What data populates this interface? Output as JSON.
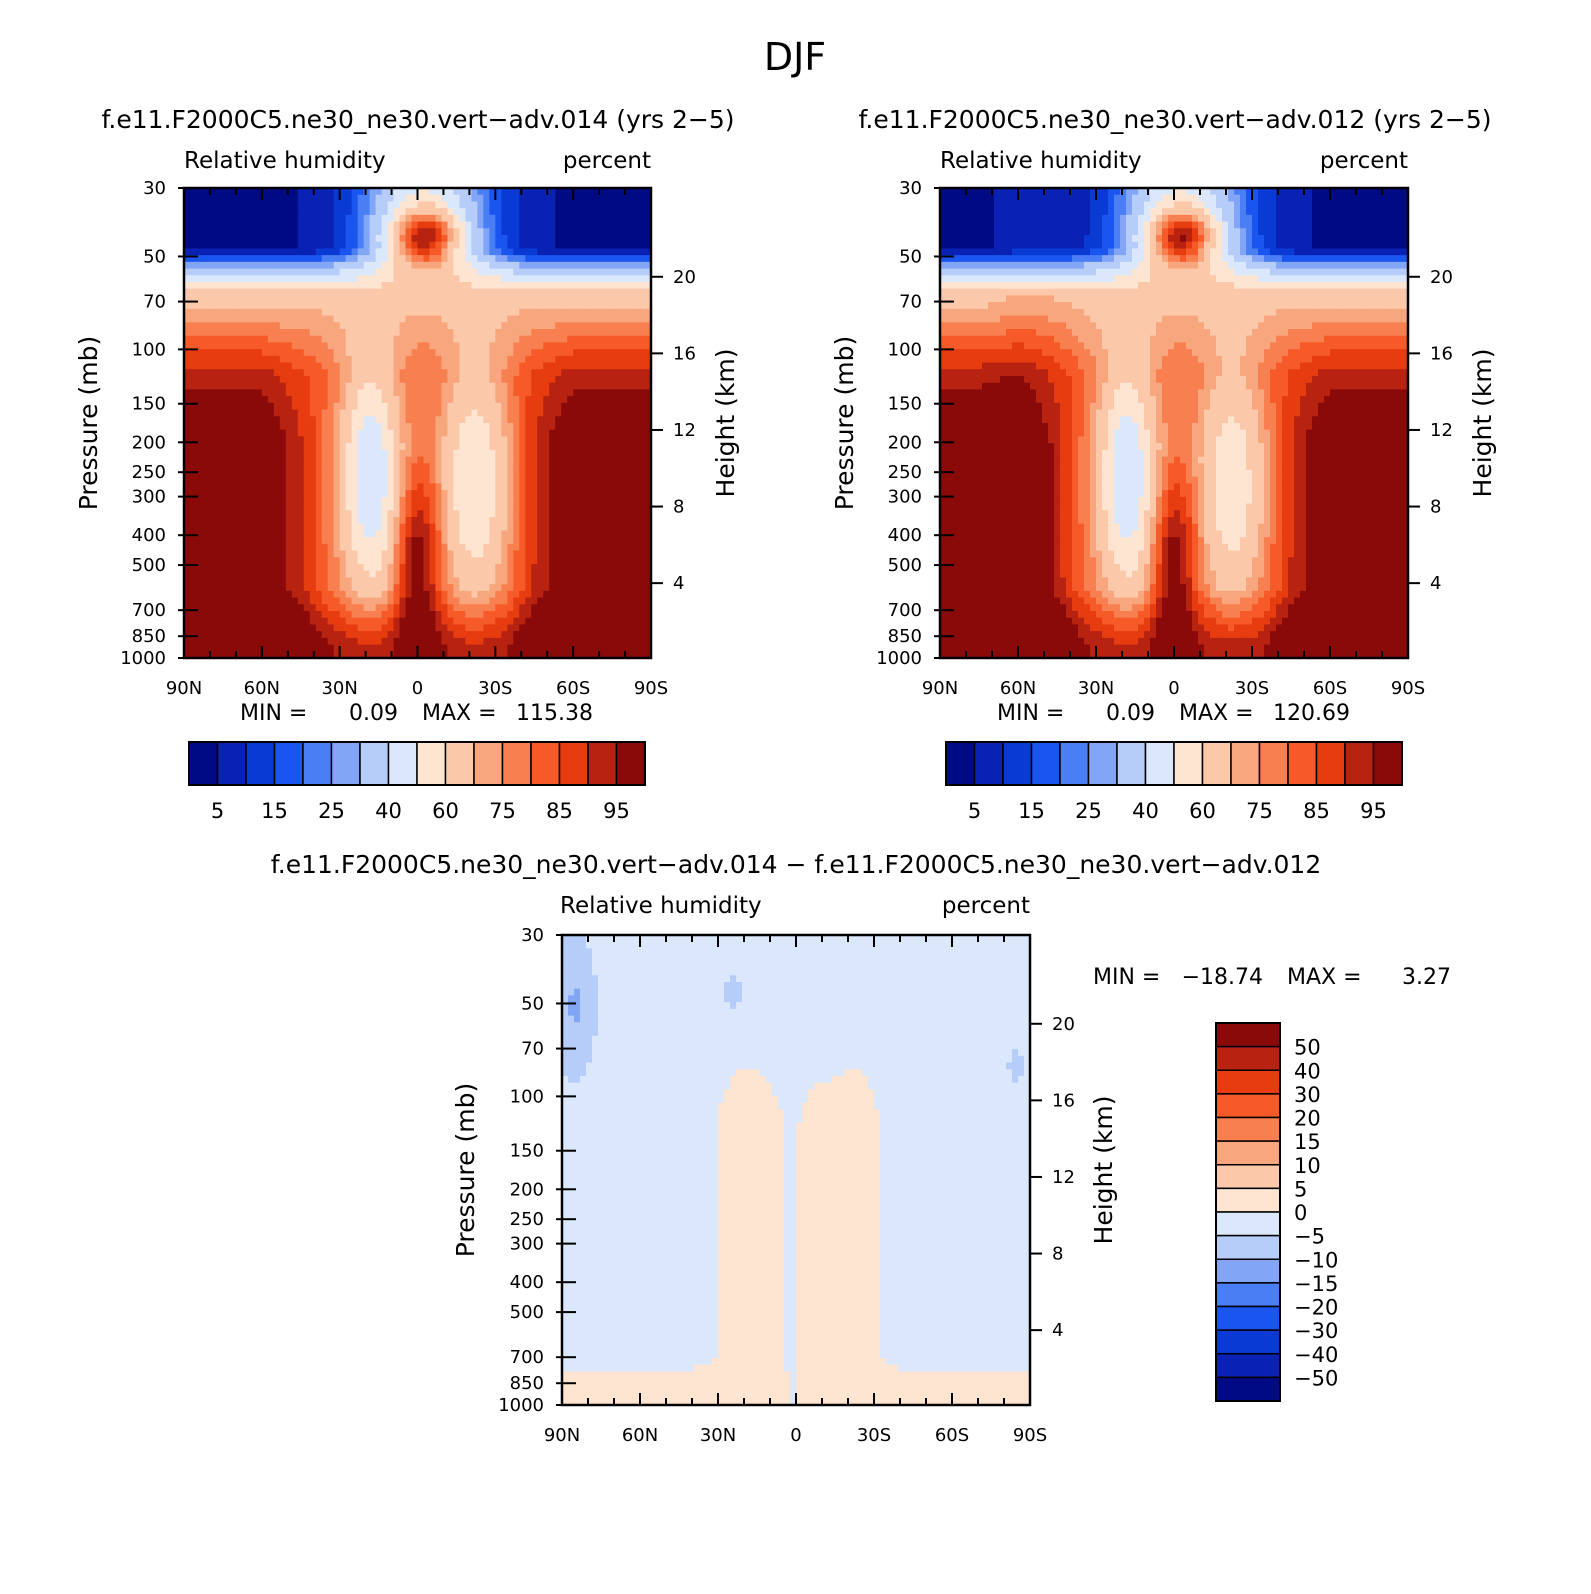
{
  "figure_title": "DJF",
  "colors": {
    "rh_palette": [
      "#000a82",
      "#0a22b4",
      "#0a3ad4",
      "#1a55f0",
      "#4a7ef5",
      "#82a6f5",
      "#b5cdf8",
      "#dbe8fb",
      "#fde5d2",
      "#fbc8aa",
      "#f8a67e",
      "#f88050",
      "#f55a28",
      "#e63c10",
      "#b82210",
      "#8a0a0a"
    ],
    "diff_palette": [
      "#000a82",
      "#0a22b4",
      "#0a3ad4",
      "#1a55f0",
      "#4a7ef5",
      "#82a6f5",
      "#b5cdf8",
      "#dbe8fb",
      "#fde5d2",
      "#fbc8aa",
      "#f8a67e",
      "#f88050",
      "#f55a28",
      "#e63c10",
      "#b82210",
      "#8a0a0a"
    ]
  },
  "chart_data": [
    {
      "type": "heatmap",
      "title": "f.e11.F2000C5.ne30_ne30.vert−adv.014 (yrs 2−5)",
      "left_subtitle": "Relative humidity",
      "right_subtitle": "percent",
      "ylabel": "Pressure (mb)",
      "y2label": "Height (km)",
      "x_ticks": [
        "90N",
        "60N",
        "30N",
        "0",
        "30S",
        "60S",
        "90S"
      ],
      "x_values": [
        90,
        60,
        30,
        0,
        -30,
        -60,
        -90
      ],
      "y_ticks": [
        30,
        50,
        70,
        100,
        150,
        200,
        250,
        300,
        400,
        500,
        700,
        850,
        1000
      ],
      "y2_ticks": [
        20,
        16,
        12,
        8,
        4
      ],
      "min_label": "MIN =",
      "min_value": "0.09",
      "max_label": "MAX =",
      "max_value": "115.38",
      "colorbar": {
        "orientation": "horizontal",
        "levels": [
          5,
          10,
          15,
          20,
          25,
          30,
          40,
          50,
          60,
          70,
          75,
          80,
          85,
          90,
          95
        ],
        "labels": [
          "5",
          "15",
          "25",
          "40",
          "60",
          "75",
          "85",
          "95"
        ]
      }
    },
    {
      "type": "heatmap",
      "title": "f.e11.F2000C5.ne30_ne30.vert−adv.012 (yrs 2−5)",
      "left_subtitle": "Relative humidity",
      "right_subtitle": "percent",
      "ylabel": "Pressure (mb)",
      "y2label": "Height (km)",
      "x_ticks": [
        "90N",
        "60N",
        "30N",
        "0",
        "30S",
        "60S",
        "90S"
      ],
      "x_values": [
        90,
        60,
        30,
        0,
        -30,
        -60,
        -90
      ],
      "y_ticks": [
        30,
        50,
        70,
        100,
        150,
        200,
        250,
        300,
        400,
        500,
        700,
        850,
        1000
      ],
      "y2_ticks": [
        20,
        16,
        12,
        8,
        4
      ],
      "min_label": "MIN =",
      "min_value": "0.09",
      "max_label": "MAX =",
      "max_value": "120.69",
      "colorbar": {
        "orientation": "horizontal",
        "levels": [
          5,
          10,
          15,
          20,
          25,
          30,
          40,
          50,
          60,
          70,
          75,
          80,
          85,
          90,
          95
        ],
        "labels": [
          "5",
          "15",
          "25",
          "40",
          "60",
          "75",
          "85",
          "95"
        ]
      }
    },
    {
      "type": "heatmap",
      "title": "f.e11.F2000C5.ne30_ne30.vert−adv.014 − f.e11.F2000C5.ne30_ne30.vert−adv.012",
      "left_subtitle": "Relative humidity",
      "right_subtitle": "percent",
      "ylabel": "Pressure (mb)",
      "y2label": "Height (km)",
      "x_ticks": [
        "90N",
        "60N",
        "30N",
        "0",
        "30S",
        "60S",
        "90S"
      ],
      "x_values": [
        90,
        60,
        30,
        0,
        -30,
        -60,
        -90
      ],
      "y_ticks": [
        30,
        50,
        70,
        100,
        150,
        200,
        250,
        300,
        400,
        500,
        700,
        850,
        1000
      ],
      "y2_ticks": [
        20,
        16,
        12,
        8,
        4
      ],
      "min_label": "MIN =",
      "min_value": "−18.74",
      "max_label": "MAX =",
      "max_value": "3.27",
      "colorbar": {
        "orientation": "vertical",
        "levels": [
          -50,
          -40,
          -30,
          -20,
          -15,
          -10,
          -5,
          0,
          5,
          10,
          15,
          20,
          30,
          40,
          50
        ],
        "labels": [
          "−50",
          "−40",
          "−30",
          "−20",
          "−15",
          "−10",
          "−5",
          "0",
          "5",
          "10",
          "15",
          "20",
          "30",
          "40",
          "50"
        ]
      }
    }
  ]
}
